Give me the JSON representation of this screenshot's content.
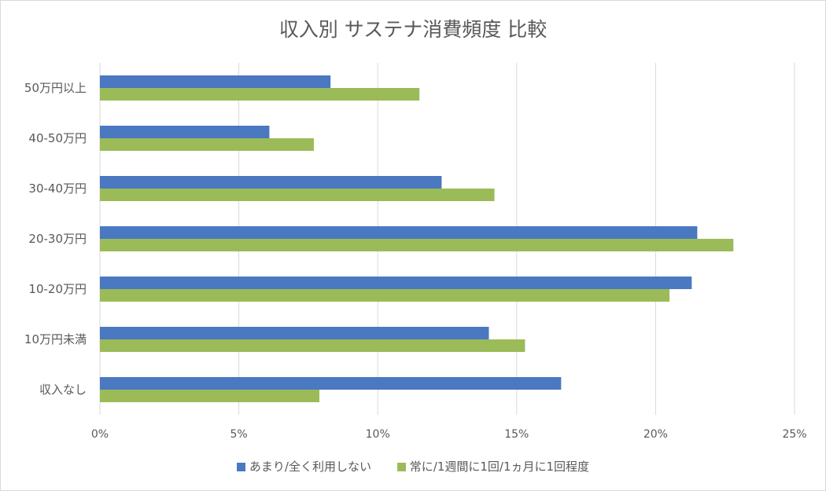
{
  "chart_data": {
    "type": "bar",
    "orientation": "horizontal",
    "title": "収入別 サステナ消費頻度 比較",
    "categories": [
      "50万円以上",
      "40-50万円",
      "30-40万円",
      "20-30万円",
      "10-20万円",
      "10万円未満",
      "収入なし"
    ],
    "series": [
      {
        "name": "あまり/全く利用しない",
        "color": "#4a78c1",
        "values": [
          8.3,
          6.1,
          12.3,
          21.5,
          21.3,
          14.0,
          16.6
        ]
      },
      {
        "name": "常に/1週間に1回/1ヵ月に1回程度",
        "color": "#9bbb59",
        "values": [
          11.5,
          7.7,
          14.2,
          22.8,
          20.5,
          15.3,
          7.9
        ]
      }
    ],
    "xlim": [
      0,
      25
    ],
    "xticks": [
      0,
      5,
      10,
      15,
      20,
      25
    ],
    "xtick_labels": [
      "0%",
      "5%",
      "10%",
      "15%",
      "20%",
      "25%"
    ],
    "xlabel": "",
    "ylabel": "",
    "grid": true,
    "legend_position": "bottom"
  }
}
